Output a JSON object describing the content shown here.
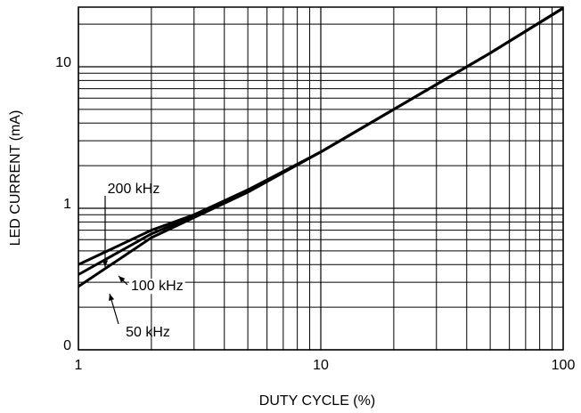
{
  "chart_data": {
    "type": "line",
    "x_label": "DUTY CYCLE (%)",
    "y_label": "LED CURRENT (mA)",
    "x": [
      1,
      2,
      3,
      5,
      10,
      20,
      50,
      100
    ],
    "series": [
      {
        "name": "200 kHz",
        "color": "#000000",
        "values": [
          0.4,
          0.7,
          0.9,
          1.35,
          2.5,
          5.0,
          12.5,
          26
        ]
      },
      {
        "name": "100 kHz",
        "color": "#000000",
        "values": [
          0.34,
          0.66,
          0.88,
          1.33,
          2.5,
          5.0,
          12.5,
          26
        ]
      },
      {
        "name": "50 kHz",
        "color": "#000000",
        "values": [
          0.28,
          0.62,
          0.86,
          1.3,
          2.5,
          5.0,
          12.5,
          26
        ]
      }
    ],
    "xscale": "log",
    "yscale": "log",
    "xlim": [
      1,
      100
    ],
    "ylim": [
      0.1,
      26.4
    ],
    "xticks": [
      1,
      10,
      100
    ],
    "yticks": [
      {
        "value": 0.1,
        "label": "0"
      },
      1,
      10
    ],
    "xgrid": [
      2,
      3,
      4,
      5,
      6,
      7,
      8,
      9,
      20,
      30,
      40,
      50,
      60,
      70,
      80,
      90
    ],
    "ygrid": [
      0.2,
      0.3,
      0.4,
      0.5,
      0.6,
      0.7,
      0.8,
      0.9,
      2,
      3,
      4,
      5,
      6,
      7,
      8,
      9,
      20
    ],
    "grid": true
  }
}
